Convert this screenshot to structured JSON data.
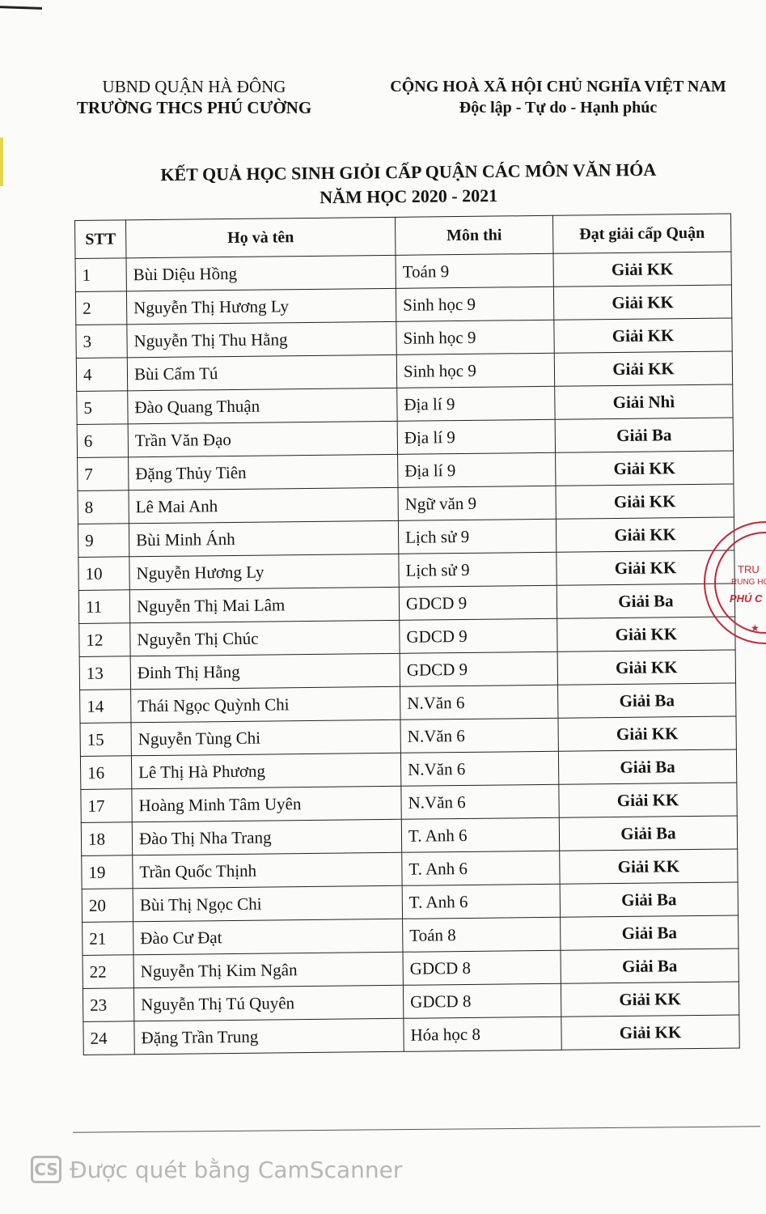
{
  "header_left": {
    "line1": "UBND QUẬN HÀ ĐÔNG",
    "line2": "TRƯỜNG THCS PHÚ CƯỜNG"
  },
  "header_right": {
    "line1": "CỘNG HOÀ XÃ HỘI CHỦ NGHĨA VIỆT NAM",
    "line2": "Độc lập -  Tự do - Hạnh phúc"
  },
  "title": {
    "line1": "KẾT QUẢ HỌC SINH GIỎI CẤP QUẬN CÁC MÔN VĂN HÓA",
    "line2": "NĂM HỌC 2020 - 2021"
  },
  "table": {
    "headers": [
      "STT",
      "Họ và tên",
      "Môn thi",
      "Đạt giải cấp Quận"
    ],
    "rows": [
      [
        "1",
        "Bùi Diệu Hồng",
        "Toán 9",
        "Giải KK"
      ],
      [
        "2",
        "Nguyễn Thị Hương Ly",
        "Sinh học 9",
        "Giải KK"
      ],
      [
        "3",
        "Nguyễn Thị Thu Hằng",
        "Sinh học 9",
        "Giải KK"
      ],
      [
        "4",
        "Bùi Cẩm Tú",
        "Sinh học 9",
        "Giải KK"
      ],
      [
        "5",
        "Đào Quang Thuận",
        "Địa lí 9",
        "Giải Nhì"
      ],
      [
        "6",
        "Trần Văn Đạo",
        "Địa lí 9",
        "Giải Ba"
      ],
      [
        "7",
        "Đặng Thủy Tiên",
        "Địa lí 9",
        "Giải KK"
      ],
      [
        "8",
        "Lê Mai Anh",
        "Ngữ văn 9",
        "Giải KK"
      ],
      [
        "9",
        "Bùi Minh Ánh",
        "Lịch sử 9",
        "Giải KK"
      ],
      [
        "10",
        "Nguyễn Hương Ly",
        "Lịch sử 9",
        "Giải KK"
      ],
      [
        "11",
        "Nguyễn Thị Mai Lâm",
        "GDCD 9",
        "Giải Ba"
      ],
      [
        "12",
        "Nguyễn Thị Chúc",
        "GDCD 9",
        "Giải KK"
      ],
      [
        "13",
        "Đinh Thị Hằng",
        "GDCD 9",
        "Giải KK"
      ],
      [
        "14",
        "Thái Ngọc Quỳnh Chi",
        "N.Văn 6",
        "Giải Ba"
      ],
      [
        "15",
        "Nguyễn Tùng Chi",
        "N.Văn 6",
        "Giải KK"
      ],
      [
        "16",
        "Lê Thị Hà Phương",
        "N.Văn 6",
        "Giải Ba"
      ],
      [
        "17",
        "Hoàng Minh Tâm Uyên",
        "N.Văn 6",
        "Giải KK"
      ],
      [
        "18",
        "Đào Thị Nha Trang",
        "T. Anh 6",
        "Giải Ba"
      ],
      [
        "19",
        "Trần Quốc Thịnh",
        "T. Anh 6",
        "Giải KK"
      ],
      [
        "20",
        "Bùi Thị Ngọc Chi",
        "T. Anh 6",
        "Giải Ba"
      ],
      [
        "21",
        "Đào Cư Đạt",
        "Toán 8",
        "Giải Ba"
      ],
      [
        "22",
        "Nguyễn Thị Kim Ngân",
        "GDCD 8",
        "Giải Ba"
      ],
      [
        "23",
        "Nguyễn Thị Tú Quyên",
        "GDCD 8",
        "Giải KK"
      ],
      [
        "24",
        "Đặng Trần Trung",
        "Hóa học 8",
        "Giải KK"
      ]
    ]
  },
  "stamp": {
    "text": "UỶ BAN NHÂN DÂN QUẬN · TRƯỜNG TRUNG HỌC PHÚ CƯỜNG",
    "color": "#c0283a"
  },
  "watermark": {
    "logo": "CS",
    "text": "Được quét bằng CamScanner"
  }
}
